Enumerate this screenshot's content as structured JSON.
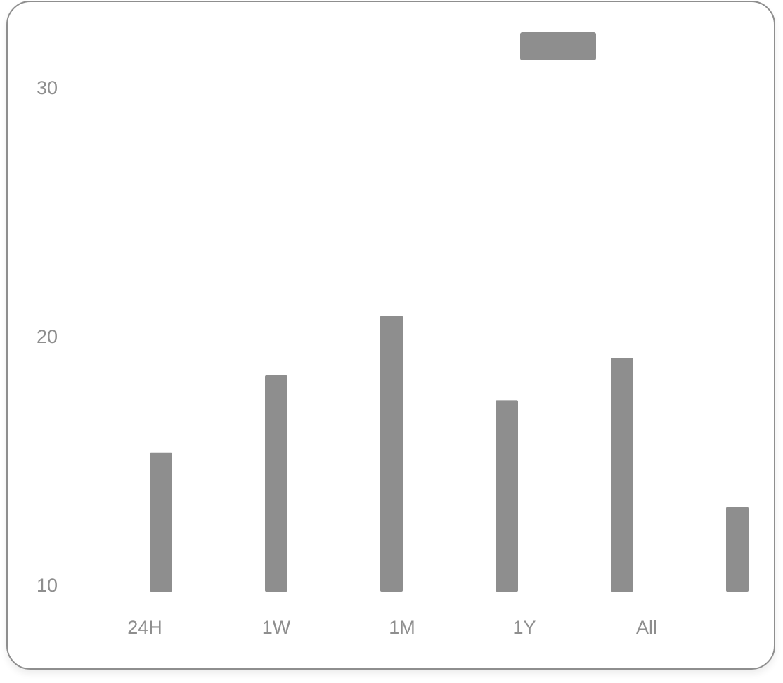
{
  "chart_data": {
    "type": "bar",
    "categories": [
      "24H",
      "1W",
      "1M",
      "1Y",
      "All",
      ""
    ],
    "values": [
      15.6,
      18.7,
      21.1,
      17.7,
      19.4,
      13.4
    ],
    "ylim": [
      10,
      30
    ],
    "yticks": [
      "10",
      "20",
      "30"
    ],
    "title": "",
    "xlabel": "",
    "ylabel": "",
    "grid": false,
    "legend_marker": true,
    "bar_color": "#8e8e8e"
  }
}
